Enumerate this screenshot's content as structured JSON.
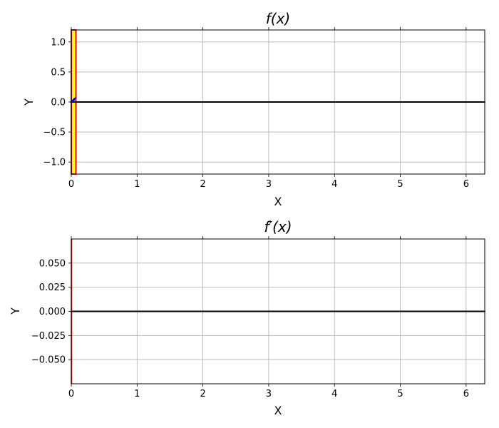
{
  "chart_data": [
    {
      "type": "line",
      "title": "f(x)",
      "xlabel": "X",
      "ylabel": "Y",
      "xlim": [
        0,
        6.283
      ],
      "ylim": [
        -1.2,
        1.2
      ],
      "xticks": [
        0,
        1,
        2,
        3,
        4,
        5,
        6
      ],
      "xtick_labels": [
        "0",
        "1",
        "2",
        "3",
        "4",
        "5",
        "6"
      ],
      "yticks": [
        -1.0,
        -0.5,
        0.0,
        0.5,
        1.0
      ],
      "ytick_labels": [
        "−1.0",
        "−0.5",
        "0.0",
        "0.5",
        "1.0"
      ],
      "grid": true,
      "highlight_band": {
        "x0": 0.0,
        "x1": 0.07,
        "fill": "#ffff00",
        "edge": "#ff0000"
      },
      "series": [
        {
          "color": "#000000",
          "x": [
            0,
            6.283
          ],
          "y": [
            0,
            0
          ]
        },
        {
          "color": "#0000ff",
          "x": [
            0.0,
            0.01,
            0.02,
            0.03,
            0.04,
            0.05,
            0.06
          ],
          "y": [
            0.0,
            0.01,
            0.02,
            0.03,
            0.04,
            0.05,
            0.06
          ]
        }
      ]
    },
    {
      "type": "line",
      "title": "f′(x)",
      "xlabel": "X",
      "ylabel": "Y",
      "xlim": [
        0,
        6.283
      ],
      "ylim": [
        -0.075,
        0.075
      ],
      "xticks": [
        0,
        1,
        2,
        3,
        4,
        5,
        6
      ],
      "xtick_labels": [
        "0",
        "1",
        "2",
        "3",
        "4",
        "5",
        "6"
      ],
      "yticks": [
        -0.05,
        -0.025,
        0.0,
        0.025,
        0.05
      ],
      "ytick_labels": [
        "−0.050",
        "−0.025",
        "0.000",
        "0.025",
        "0.050"
      ],
      "grid": true,
      "vline": {
        "x": 0.003,
        "color": "#ff0000"
      },
      "series": [
        {
          "color": "#000000",
          "x": [
            0,
            6.283
          ],
          "y": [
            0,
            0
          ]
        }
      ]
    }
  ]
}
